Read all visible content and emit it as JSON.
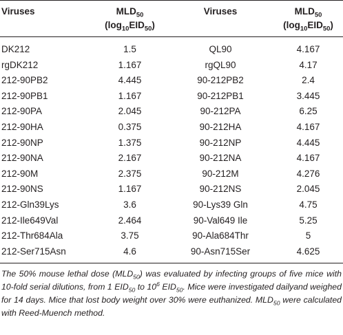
{
  "table": {
    "header": [
      [
        [
          {
            "text": "Viruses"
          }
        ]
      ],
      [
        [
          {
            "text": "MLD"
          },
          {
            "text": "50",
            "sub": true
          }
        ],
        [
          {
            "text": "(log"
          },
          {
            "text": "10",
            "sub": true
          },
          {
            "text": "EID"
          },
          {
            "text": "50",
            "sub": true
          },
          {
            "text": ")"
          }
        ]
      ],
      [
        [
          {
            "text": "Viruses"
          }
        ]
      ],
      [
        [
          {
            "text": "MLD"
          },
          {
            "text": "50",
            "sub": true
          }
        ],
        [
          {
            "text": "(log"
          },
          {
            "text": "10",
            "sub": true
          },
          {
            "text": "EID"
          },
          {
            "text": "50",
            "sub": true
          },
          {
            "text": ")"
          }
        ]
      ]
    ],
    "rows": [
      [
        "DK212",
        1.5,
        "QL90",
        4.167
      ],
      [
        "rgDK212",
        1.167,
        "rgQL90",
        4.17
      ],
      [
        "212-90PB2",
        4.445,
        "90-212PB2",
        2.4
      ],
      [
        "212-90PB1",
        1.167,
        "90-212PB1",
        3.445
      ],
      [
        "212-90PA",
        2.045,
        "90-212PA",
        6.25
      ],
      [
        "212-90HA",
        0.375,
        "90-212HA",
        4.167
      ],
      [
        "212-90NP",
        1.375,
        "90-212NP",
        4.445
      ],
      [
        "212-90NA",
        2.167,
        "90-212NA",
        4.167
      ],
      [
        "212-90M",
        2.375,
        "90-212M",
        4.276
      ],
      [
        "212-90NS",
        1.167,
        "90-212NS",
        2.045
      ],
      [
        "212-Gln39Lys",
        3.6,
        "90-Lys39 Gln",
        4.75
      ],
      [
        "212-Ile649Val",
        2.464,
        "90-Val649 Ile",
        5.25
      ],
      [
        "212-Thr684Ala",
        3.75,
        "90-Ala684Thr",
        5
      ],
      [
        "212-Ser715Asn",
        4.6,
        "90-Asn715Ser",
        4.625
      ]
    ],
    "footnote": [
      {
        "text": "The 50% mouse lethal dose (MLD"
      },
      {
        "text": "50",
        "sub": true
      },
      {
        "text": ") was evaluated by infecting groups of five mice with 10-fold serial dilutions, from 1 EID"
      },
      {
        "text": "50",
        "sub": true
      },
      {
        "text": " to 10"
      },
      {
        "text": "6",
        "sup": true
      },
      {
        "text": " EID"
      },
      {
        "text": "50",
        "sub": true
      },
      {
        "text": ". Mice were investigated dailyand weighed for 14 days. Mice that lost body weight over 30% were euthanized. MLD"
      },
      {
        "text": "50",
        "sub": true
      },
      {
        "text": " were calculated with Reed-Muench method."
      }
    ]
  }
}
